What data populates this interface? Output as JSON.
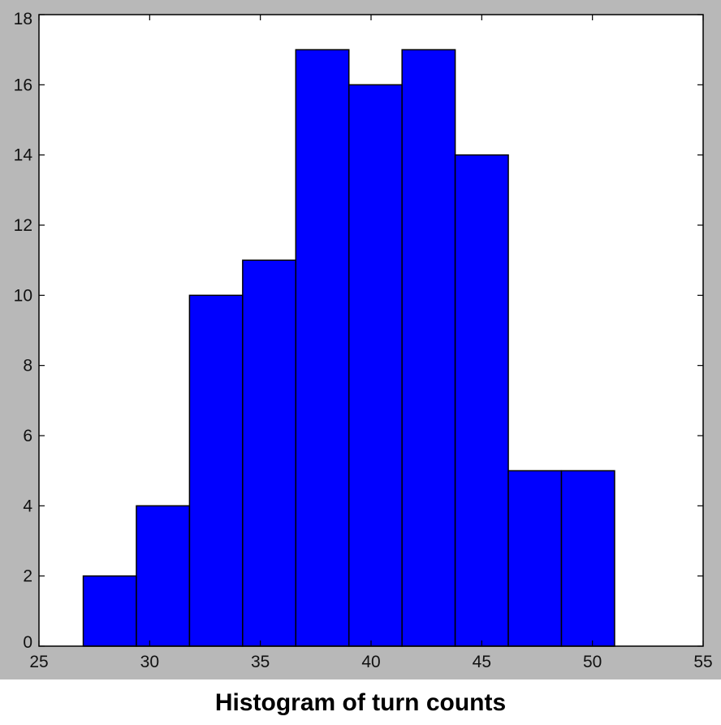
{
  "caption": "Histogram of turn counts",
  "chart_data": {
    "type": "bar",
    "subtype": "histogram",
    "bin_edges": [
      27.0,
      29.4,
      31.8,
      34.2,
      36.6,
      39.0,
      41.4,
      43.8,
      46.2,
      48.6,
      51.0
    ],
    "values": [
      2,
      4,
      10,
      11,
      17,
      16,
      17,
      14,
      5,
      5
    ],
    "xlim": [
      25,
      55
    ],
    "ylim": [
      0,
      18
    ],
    "xticks": [
      25,
      30,
      35,
      40,
      45,
      50,
      55
    ],
    "yticks": [
      0,
      2,
      4,
      6,
      8,
      10,
      12,
      14,
      16,
      18
    ],
    "title": "",
    "xlabel": "",
    "ylabel": "",
    "grid": false,
    "legend": "none",
    "colors": {
      "bar_fill": "#0000ff",
      "bar_edge": "#000000",
      "plot_background": "#ffffff",
      "figure_background": "#b8b8b8"
    }
  }
}
